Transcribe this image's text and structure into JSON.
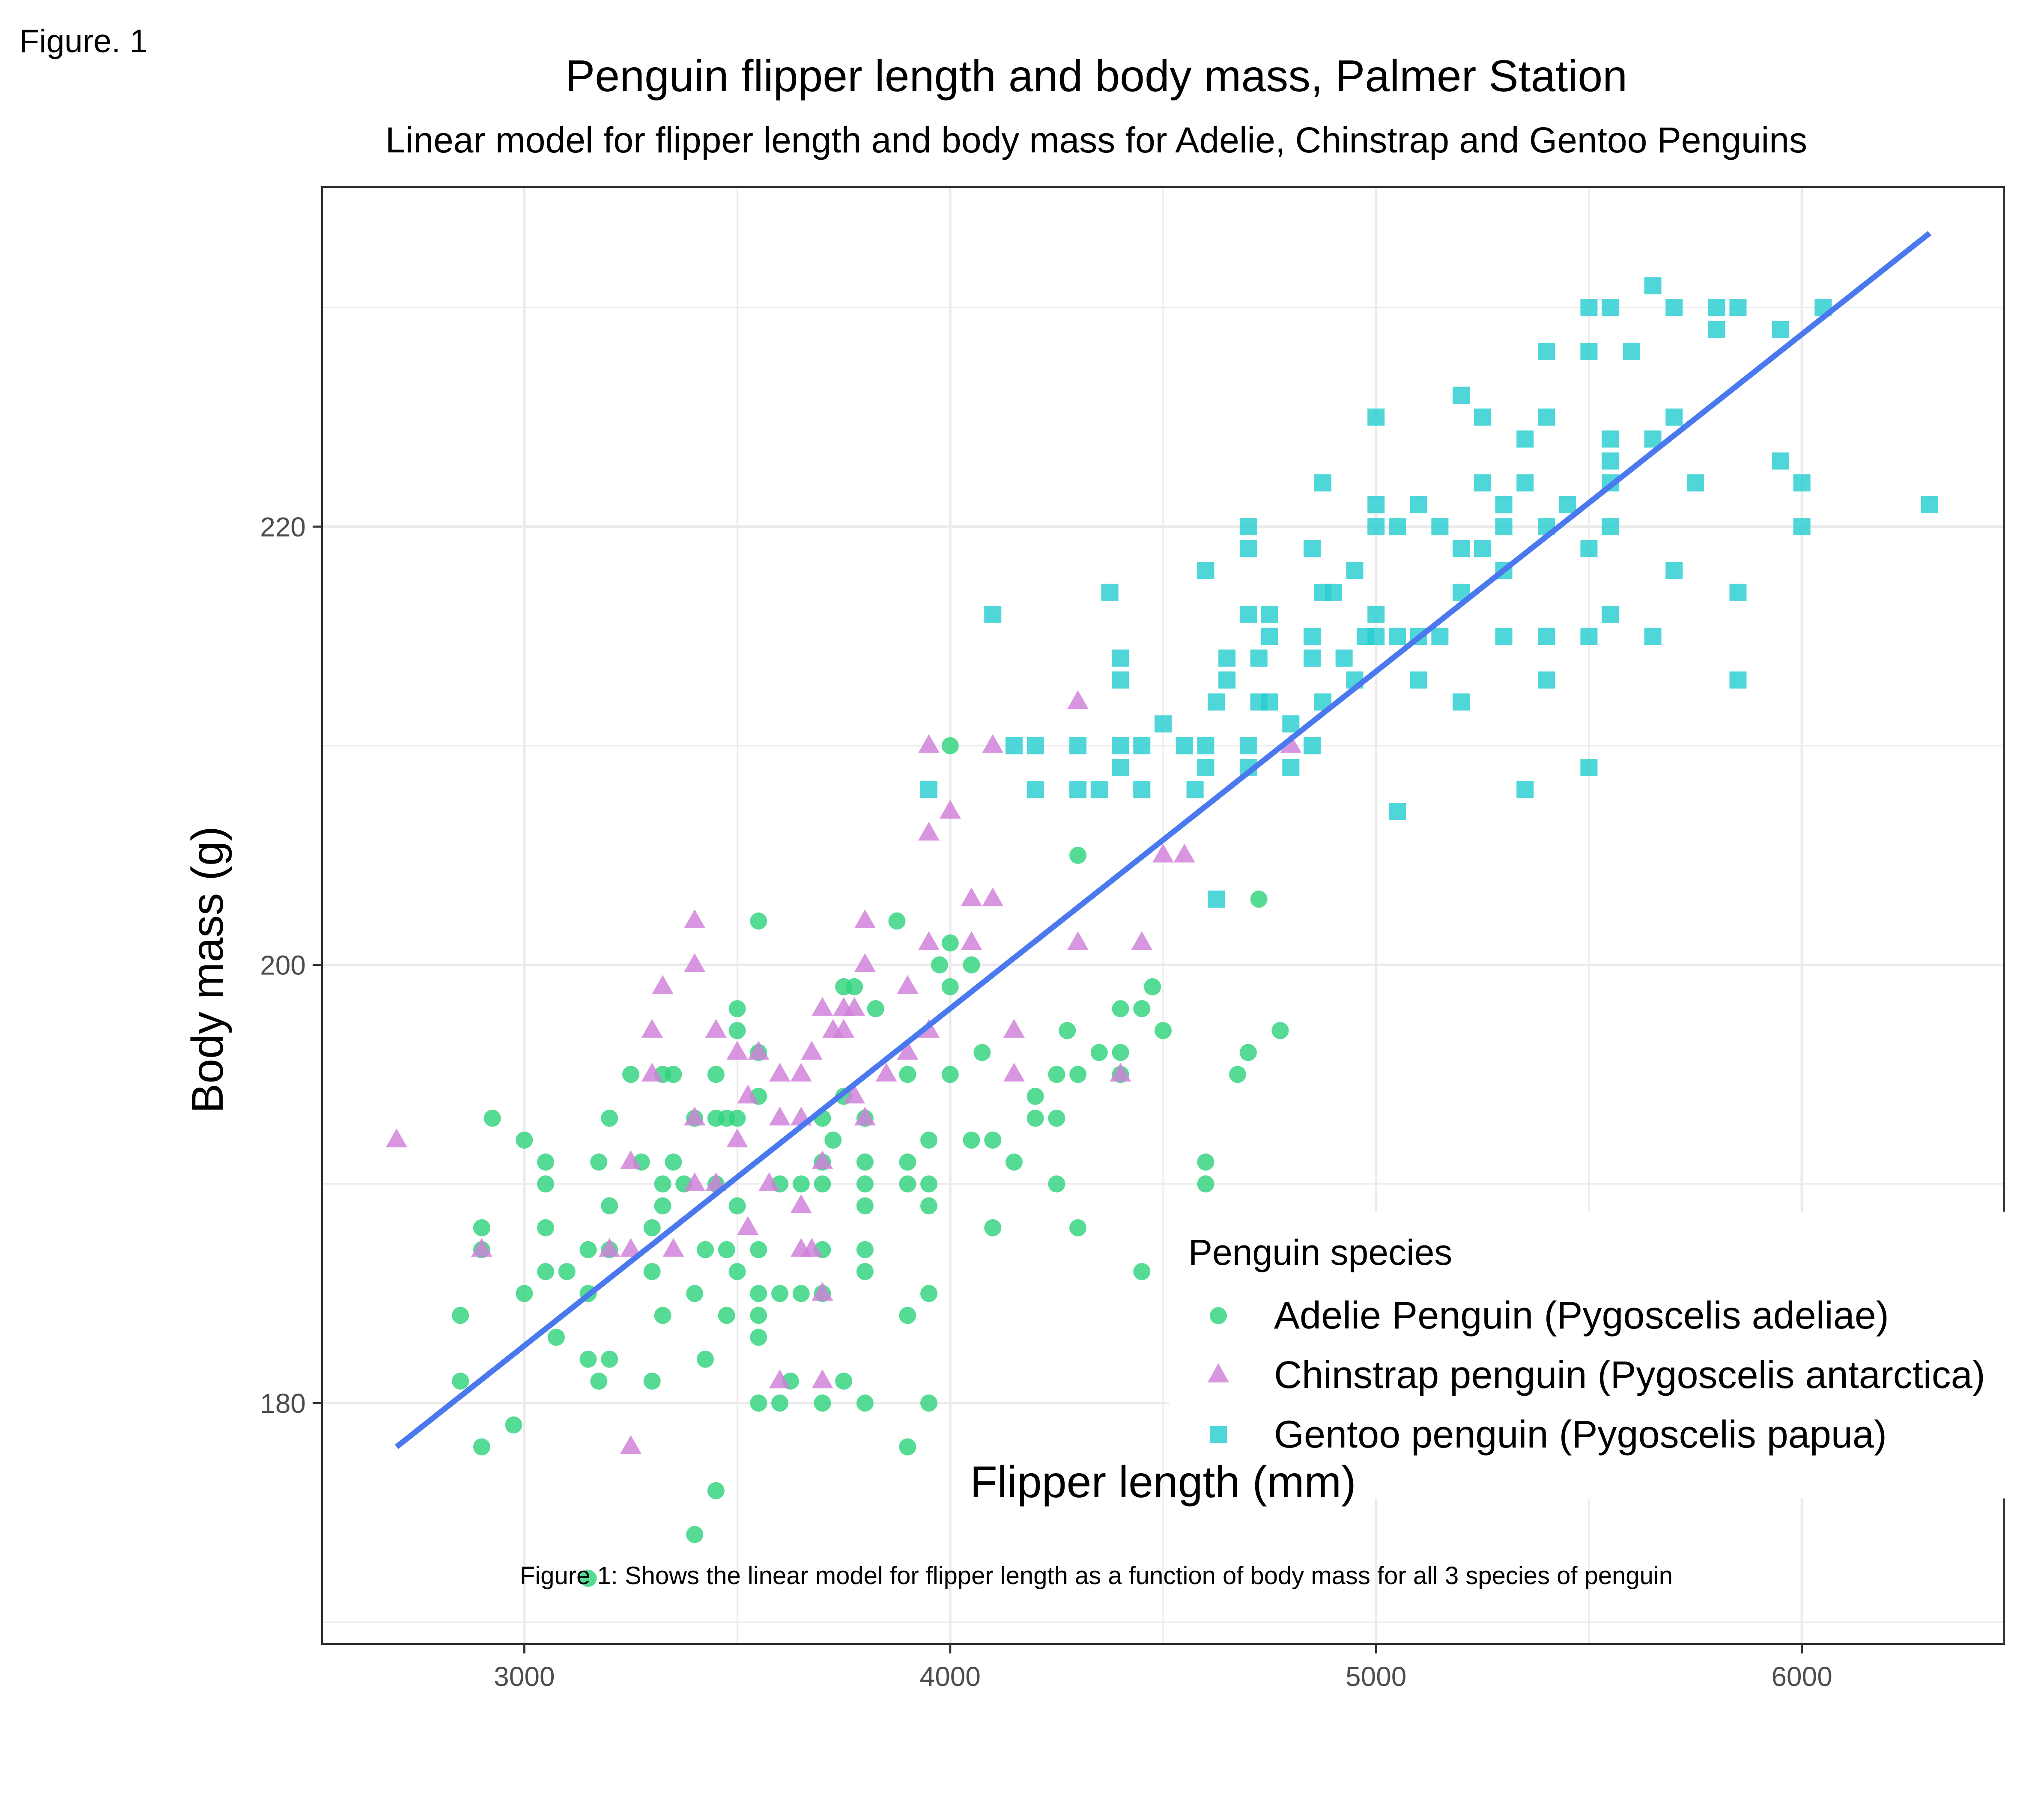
{
  "figure_label": "Figure. 1",
  "caption": "Figure 1: Shows the linear model for flipper length as a function of body mass for all 3 species of penguin",
  "colors": {
    "adelie": "#2fd37c",
    "chinstrap": "#d17fd9",
    "gentoo": "#27cdd1",
    "fit_line": "#4a78ee",
    "grid": "#ebebeb",
    "panel_border": "#333333"
  },
  "chart_data": {
    "type": "scatter",
    "title": "Penguin flipper length and body mass, Palmer Station",
    "subtitle": "Linear model for flipper length and body mass for Adelie, Chinstrap and Gentoo Penguins",
    "xlabel": "Flipper length (mm)",
    "ylabel": "Body mass (g)",
    "xlim": [
      2525,
      6475
    ],
    "ylim": [
      169,
      235.5
    ],
    "x_ticks": [
      3000,
      4000,
      5000,
      6000
    ],
    "y_ticks": [
      180,
      200,
      220
    ],
    "x_tick_labels": [
      "3000",
      "4000",
      "5000",
      "6000"
    ],
    "y_tick_labels": [
      "180",
      "200",
      "220"
    ],
    "grid": true,
    "legend": {
      "title": "Penguin species",
      "position": "bottom-right",
      "entries": [
        "Adelie Penguin (Pygoscelis adeliae)",
        "Chinstrap penguin (Pygoscelis antarctica)",
        "Gentoo penguin (Pygoscelis papua)"
      ]
    },
    "fit_line": {
      "x": [
        2700,
        6300
      ],
      "y": [
        178.0,
        233.4
      ]
    },
    "series": [
      {
        "name": "Adelie Penguin (Pygoscelis adeliae)",
        "marker": "circle",
        "points": [
          [
            2850,
            184
          ],
          [
            2850,
            181
          ],
          [
            2900,
            188
          ],
          [
            2900,
            187
          ],
          [
            2900,
            178
          ],
          [
            2925,
            193
          ],
          [
            2975,
            179
          ],
          [
            3000,
            192
          ],
          [
            3000,
            185
          ],
          [
            3050,
            191
          ],
          [
            3050,
            190
          ],
          [
            3050,
            188
          ],
          [
            3050,
            186
          ],
          [
            3075,
            183
          ],
          [
            3100,
            186
          ],
          [
            3150,
            187
          ],
          [
            3150,
            185
          ],
          [
            3150,
            182
          ],
          [
            3150,
            172
          ],
          [
            3175,
            191
          ],
          [
            3175,
            181
          ],
          [
            3200,
            193
          ],
          [
            3200,
            189
          ],
          [
            3200,
            187
          ],
          [
            3200,
            182
          ],
          [
            3250,
            195
          ],
          [
            3275,
            191
          ],
          [
            3300,
            188
          ],
          [
            3300,
            186
          ],
          [
            3300,
            181
          ],
          [
            3325,
            195
          ],
          [
            3325,
            190
          ],
          [
            3325,
            189
          ],
          [
            3325,
            184
          ],
          [
            3350,
            195
          ],
          [
            3350,
            191
          ],
          [
            3375,
            190
          ],
          [
            3400,
            193
          ],
          [
            3400,
            185
          ],
          [
            3400,
            174
          ],
          [
            3425,
            187
          ],
          [
            3425,
            182
          ],
          [
            3450,
            195
          ],
          [
            3450,
            193
          ],
          [
            3450,
            190
          ],
          [
            3450,
            176
          ],
          [
            3475,
            193
          ],
          [
            3475,
            187
          ],
          [
            3475,
            184
          ],
          [
            3500,
            198
          ],
          [
            3500,
            197
          ],
          [
            3500,
            193
          ],
          [
            3500,
            189
          ],
          [
            3500,
            186
          ],
          [
            3550,
            202
          ],
          [
            3550,
            196
          ],
          [
            3550,
            194
          ],
          [
            3550,
            187
          ],
          [
            3550,
            185
          ],
          [
            3550,
            184
          ],
          [
            3550,
            183
          ],
          [
            3550,
            180
          ],
          [
            3600,
            190
          ],
          [
            3600,
            185
          ],
          [
            3600,
            180
          ],
          [
            3625,
            181
          ],
          [
            3650,
            190
          ],
          [
            3650,
            185
          ],
          [
            3700,
            193
          ],
          [
            3700,
            191
          ],
          [
            3700,
            190
          ],
          [
            3700,
            187
          ],
          [
            3700,
            185
          ],
          [
            3700,
            180
          ],
          [
            3725,
            192
          ],
          [
            3750,
            199
          ],
          [
            3750,
            194
          ],
          [
            3750,
            181
          ],
          [
            3775,
            199
          ],
          [
            3800,
            193
          ],
          [
            3800,
            191
          ],
          [
            3800,
            190
          ],
          [
            3800,
            189
          ],
          [
            3800,
            187
          ],
          [
            3800,
            186
          ],
          [
            3800,
            180
          ],
          [
            3825,
            198
          ],
          [
            3875,
            202
          ],
          [
            3900,
            195
          ],
          [
            3900,
            191
          ],
          [
            3900,
            190
          ],
          [
            3900,
            184
          ],
          [
            3900,
            178
          ],
          [
            3950,
            192
          ],
          [
            3950,
            190
          ],
          [
            3950,
            189
          ],
          [
            3950,
            185
          ],
          [
            3950,
            180
          ],
          [
            3975,
            200
          ],
          [
            4000,
            210
          ],
          [
            4000,
            201
          ],
          [
            4000,
            199
          ],
          [
            4000,
            195
          ],
          [
            4050,
            200
          ],
          [
            4050,
            192
          ],
          [
            4075,
            196
          ],
          [
            4100,
            192
          ],
          [
            4100,
            188
          ],
          [
            4150,
            191
          ],
          [
            4200,
            194
          ],
          [
            4200,
            193
          ],
          [
            4250,
            195
          ],
          [
            4250,
            193
          ],
          [
            4250,
            190
          ],
          [
            4275,
            197
          ],
          [
            4300,
            205
          ],
          [
            4300,
            195
          ],
          [
            4300,
            188
          ],
          [
            4350,
            196
          ],
          [
            4400,
            198
          ],
          [
            4400,
            196
          ],
          [
            4400,
            195
          ],
          [
            4450,
            198
          ],
          [
            4450,
            186
          ],
          [
            4475,
            199
          ],
          [
            4500,
            197
          ],
          [
            4600,
            191
          ],
          [
            4600,
            190
          ],
          [
            4675,
            195
          ],
          [
            4700,
            196
          ],
          [
            4725,
            203
          ],
          [
            4775,
            197
          ]
        ]
      },
      {
        "name": "Chinstrap penguin (Pygoscelis antarctica)",
        "marker": "triangle",
        "points": [
          [
            2700,
            192
          ],
          [
            2900,
            187
          ],
          [
            3200,
            187
          ],
          [
            3250,
            191
          ],
          [
            3250,
            187
          ],
          [
            3250,
            178
          ],
          [
            3300,
            197
          ],
          [
            3300,
            195
          ],
          [
            3325,
            199
          ],
          [
            3350,
            187
          ],
          [
            3400,
            202
          ],
          [
            3400,
            200
          ],
          [
            3400,
            193
          ],
          [
            3400,
            190
          ],
          [
            3450,
            197
          ],
          [
            3450,
            190
          ],
          [
            3500,
            196
          ],
          [
            3500,
            192
          ],
          [
            3525,
            194
          ],
          [
            3525,
            188
          ],
          [
            3550,
            196
          ],
          [
            3575,
            190
          ],
          [
            3600,
            195
          ],
          [
            3600,
            193
          ],
          [
            3600,
            181
          ],
          [
            3650,
            195
          ],
          [
            3650,
            193
          ],
          [
            3650,
            189
          ],
          [
            3650,
            187
          ],
          [
            3675,
            196
          ],
          [
            3675,
            187
          ],
          [
            3700,
            198
          ],
          [
            3700,
            191
          ],
          [
            3700,
            185
          ],
          [
            3700,
            181
          ],
          [
            3725,
            197
          ],
          [
            3750,
            198
          ],
          [
            3750,
            197
          ],
          [
            3775,
            198
          ],
          [
            3775,
            194
          ],
          [
            3800,
            202
          ],
          [
            3800,
            200
          ],
          [
            3800,
            193
          ],
          [
            3850,
            195
          ],
          [
            3900,
            199
          ],
          [
            3900,
            196
          ],
          [
            3950,
            210
          ],
          [
            3950,
            206
          ],
          [
            3950,
            201
          ],
          [
            3950,
            197
          ],
          [
            4000,
            207
          ],
          [
            4050,
            203
          ],
          [
            4050,
            201
          ],
          [
            4100,
            210
          ],
          [
            4100,
            203
          ],
          [
            4150,
            197
          ],
          [
            4150,
            195
          ],
          [
            4300,
            212
          ],
          [
            4300,
            201
          ],
          [
            4400,
            195
          ],
          [
            4450,
            201
          ],
          [
            4500,
            205
          ],
          [
            4550,
            205
          ],
          [
            4800,
            210
          ]
        ]
      },
      {
        "name": "Gentoo penguin (Pygoscelis papua)",
        "marker": "square",
        "points": [
          [
            3950,
            208
          ],
          [
            4100,
            216
          ],
          [
            4150,
            210
          ],
          [
            4200,
            210
          ],
          [
            4200,
            208
          ],
          [
            4300,
            210
          ],
          [
            4300,
            208
          ],
          [
            4350,
            208
          ],
          [
            4375,
            217
          ],
          [
            4400,
            214
          ],
          [
            4400,
            213
          ],
          [
            4400,
            210
          ],
          [
            4400,
            209
          ],
          [
            4450,
            210
          ],
          [
            4450,
            208
          ],
          [
            4500,
            211
          ],
          [
            4550,
            210
          ],
          [
            4575,
            208
          ],
          [
            4600,
            218
          ],
          [
            4600,
            210
          ],
          [
            4600,
            209
          ],
          [
            4625,
            212
          ],
          [
            4625,
            203
          ],
          [
            4650,
            214
          ],
          [
            4650,
            213
          ],
          [
            4700,
            220
          ],
          [
            4700,
            219
          ],
          [
            4700,
            216
          ],
          [
            4700,
            210
          ],
          [
            4700,
            209
          ],
          [
            4725,
            214
          ],
          [
            4725,
            212
          ],
          [
            4750,
            216
          ],
          [
            4750,
            215
          ],
          [
            4750,
            212
          ],
          [
            4800,
            211
          ],
          [
            4800,
            209
          ],
          [
            4850,
            219
          ],
          [
            4850,
            215
          ],
          [
            4850,
            214
          ],
          [
            4850,
            210
          ],
          [
            4875,
            222
          ],
          [
            4875,
            217
          ],
          [
            4875,
            212
          ],
          [
            4900,
            217
          ],
          [
            4925,
            214
          ],
          [
            4950,
            218
          ],
          [
            4950,
            213
          ],
          [
            4975,
            215
          ],
          [
            5000,
            225
          ],
          [
            5000,
            221
          ],
          [
            5000,
            220
          ],
          [
            5000,
            216
          ],
          [
            5000,
            215
          ],
          [
            5050,
            220
          ],
          [
            5050,
            215
          ],
          [
            5050,
            207
          ],
          [
            5100,
            221
          ],
          [
            5100,
            215
          ],
          [
            5100,
            213
          ],
          [
            5150,
            220
          ],
          [
            5150,
            215
          ],
          [
            5200,
            226
          ],
          [
            5200,
            219
          ],
          [
            5200,
            217
          ],
          [
            5200,
            212
          ],
          [
            5250,
            225
          ],
          [
            5250,
            222
          ],
          [
            5250,
            219
          ],
          [
            5300,
            221
          ],
          [
            5300,
            220
          ],
          [
            5300,
            218
          ],
          [
            5300,
            215
          ],
          [
            5350,
            224
          ],
          [
            5350,
            222
          ],
          [
            5350,
            208
          ],
          [
            5400,
            228
          ],
          [
            5400,
            225
          ],
          [
            5400,
            220
          ],
          [
            5400,
            215
          ],
          [
            5400,
            213
          ],
          [
            5450,
            221
          ],
          [
            5500,
            230
          ],
          [
            5500,
            228
          ],
          [
            5500,
            219
          ],
          [
            5500,
            215
          ],
          [
            5500,
            209
          ],
          [
            5550,
            230
          ],
          [
            5550,
            224
          ],
          [
            5550,
            223
          ],
          [
            5550,
            222
          ],
          [
            5550,
            220
          ],
          [
            5550,
            216
          ],
          [
            5600,
            228
          ],
          [
            5650,
            231
          ],
          [
            5650,
            224
          ],
          [
            5650,
            215
          ],
          [
            5700,
            230
          ],
          [
            5700,
            225
          ],
          [
            5700,
            218
          ],
          [
            5750,
            222
          ],
          [
            5800,
            230
          ],
          [
            5800,
            229
          ],
          [
            5850,
            230
          ],
          [
            5850,
            217
          ],
          [
            5850,
            213
          ],
          [
            5950,
            229
          ],
          [
            5950,
            223
          ],
          [
            6000,
            222
          ],
          [
            6000,
            220
          ],
          [
            6050,
            230
          ],
          [
            6300,
            221
          ]
        ]
      }
    ]
  }
}
